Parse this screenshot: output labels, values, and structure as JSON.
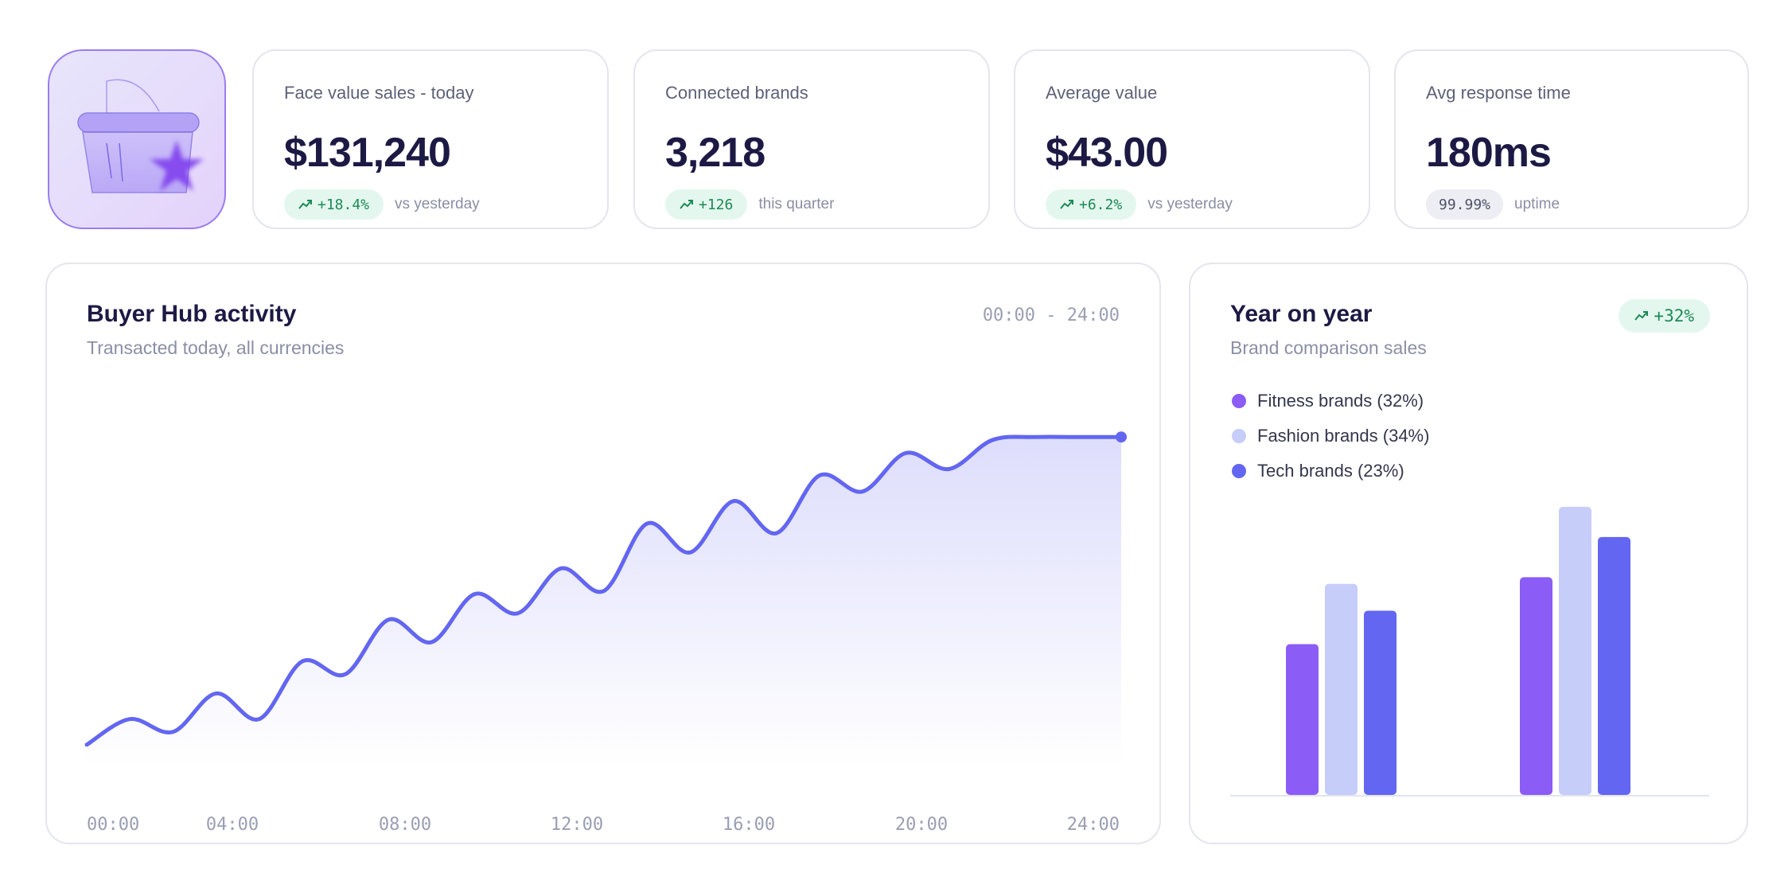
{
  "stats": [
    {
      "label": "Face value sales - today",
      "value": "$131,240",
      "delta": "+18.4%",
      "delta_kind": "up",
      "note": "vs yesterday"
    },
    {
      "label": "Connected brands",
      "value": "3,218",
      "delta": "+126",
      "delta_kind": "up",
      "note": "this quarter"
    },
    {
      "label": "Average value",
      "value": "$43.00",
      "delta": "+6.2%",
      "delta_kind": "up",
      "note": "vs yesterday"
    },
    {
      "label": "Avg response time",
      "value": "180ms",
      "delta": "99.99%",
      "delta_kind": "neutral",
      "note": "uptime"
    }
  ],
  "icons": {
    "logo": "basket-star-icon",
    "trend": "trend-up-icon"
  },
  "colors": {
    "accent_line": "#6366f1",
    "positive": "#1d8a55",
    "positive_bg": "#e4f7ee",
    "fitness": "#8b5cf6",
    "fashion": "#c7cdf9",
    "tech": "#6366f1"
  },
  "activity": {
    "title": "Buyer Hub activity",
    "subtitle": "Transacted today, all currencies",
    "range": "00:00 - 24:00"
  },
  "yoy": {
    "title": "Year on year",
    "subtitle": "Brand comparison sales",
    "badge": "+32%"
  },
  "chart_data": [
    {
      "type": "area",
      "x_ticks": [
        "00:00",
        "04:00",
        "08:00",
        "12:00",
        "16:00",
        "20:00",
        "24:00"
      ],
      "x": [
        0,
        1,
        2,
        3,
        4,
        5,
        6,
        7,
        8,
        9,
        10,
        11,
        12,
        13,
        14,
        15,
        16,
        17,
        18,
        19,
        20,
        21,
        22,
        23,
        24
      ],
      "series": [
        {
          "values": [
            4,
            12,
            8,
            20,
            12,
            30,
            26,
            43,
            36,
            51,
            45,
            59,
            52,
            73,
            64,
            80,
            70,
            88,
            83,
            95,
            90,
            99,
            100,
            100,
            100
          ]
        }
      ],
      "ylim": [
        0,
        108
      ],
      "grid": false
    },
    {
      "type": "bar",
      "categories": [
        "",
        ""
      ],
      "series": [
        {
          "name": "Fitness brands (32%)",
          "color": "#8b5cf6",
          "values": [
            45,
            65
          ]
        },
        {
          "name": "Fashion brands (34%)",
          "color": "#c7cdf9",
          "values": [
            63,
            86
          ]
        },
        {
          "name": "Tech brands (23%)",
          "color": "#6366f1",
          "values": [
            55,
            77
          ]
        }
      ],
      "ylim": [
        0,
        100
      ],
      "legend": "top-left",
      "grid": false
    }
  ]
}
